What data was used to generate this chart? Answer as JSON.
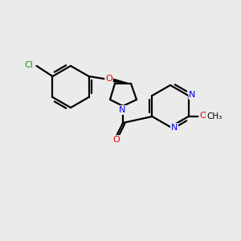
{
  "background_color": "#ebebeb",
  "bond_color": "#000000",
  "atom_colors": {
    "N": "#0000ee",
    "O": "#ee0000",
    "Cl": "#00aa00",
    "C": "#000000"
  },
  "figsize": [
    3.0,
    3.0
  ],
  "dpi": 100
}
